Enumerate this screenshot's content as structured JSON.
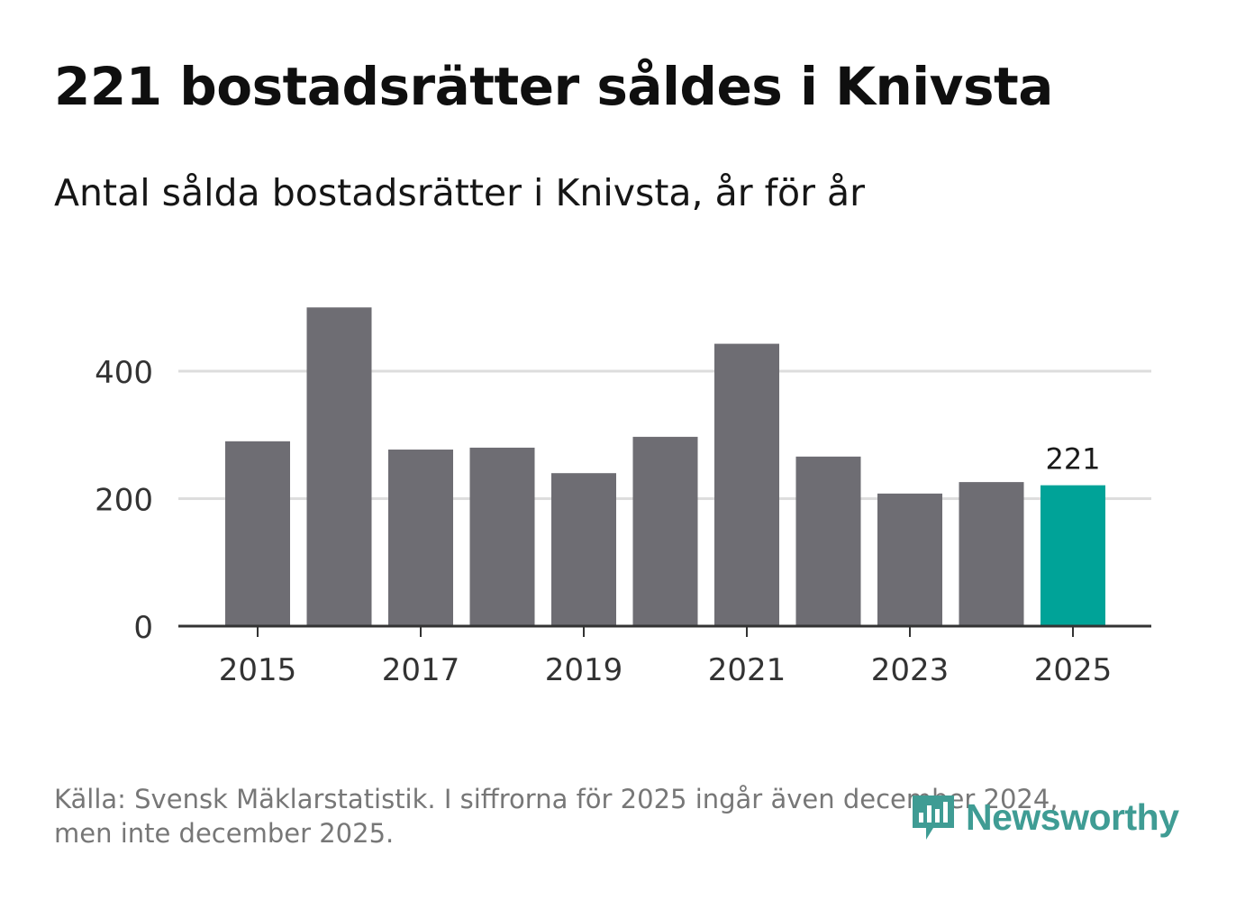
{
  "header": {
    "title": "221 bostadsrätter såldes i Knivsta",
    "subtitle": "Antal sålda bostadsrätter i Knivsta, år för år"
  },
  "chart_data": {
    "type": "bar",
    "categories": [
      "2015",
      "2016",
      "2017",
      "2018",
      "2019",
      "2020",
      "2021",
      "2022",
      "2023",
      "2024",
      "2025"
    ],
    "values": [
      290,
      500,
      277,
      280,
      240,
      297,
      443,
      266,
      208,
      226,
      221
    ],
    "x_tick_labels": [
      "2015",
      "2017",
      "2019",
      "2021",
      "2023",
      "2025"
    ],
    "y_ticks": [
      0,
      200,
      400
    ],
    "ylim": [
      0,
      520
    ],
    "highlight_index": 10,
    "highlight_label": "221",
    "colors": {
      "bar": "#6e6d73",
      "highlight": "#00a398",
      "grid": "#dddddd",
      "axis": "#333333"
    },
    "title": "221 bostadsrätter såldes i Knivsta",
    "xlabel": "",
    "ylabel": ""
  },
  "footer": {
    "source_line1": "Källa: Svensk Mäklarstatistik. I siffrorna för 2025 ingår även december 2024,",
    "source_line2": "men inte december 2025.",
    "logo_text": "Newsworthy",
    "logo_icon": "newsworthy-chart-icon",
    "logo_color": "#3f9c94"
  }
}
